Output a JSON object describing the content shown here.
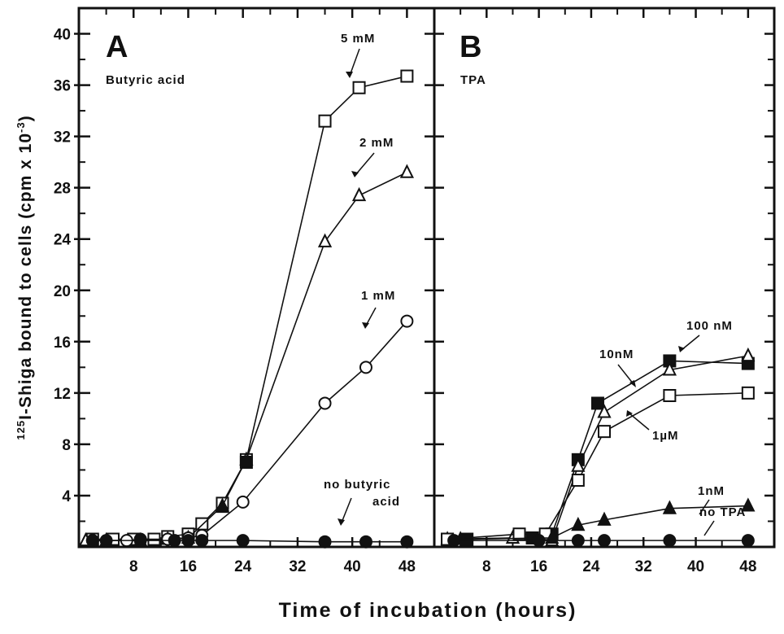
{
  "chart_data": [
    {
      "type": "line",
      "panel_letter": "A",
      "subtitle": "Butyric acid",
      "xlabel": "Time of incubation (hours)",
      "ylabel": "125I-Shiga bound to cells (cpm x10^3)",
      "ylabel_parts": {
        "sup": "125",
        "main": "I-Shiga bound to cells  (cpm x 10",
        "exp": "-3",
        "close": ")"
      },
      "xlim": [
        0,
        52
      ],
      "ylim": [
        0,
        42
      ],
      "x_ticks": [
        8,
        16,
        24,
        32,
        40,
        48
      ],
      "y_ticks": [
        4,
        8,
        12,
        16,
        20,
        24,
        28,
        32,
        36,
        40
      ],
      "grid": false,
      "series": [
        {
          "name": "5 mM",
          "marker": "square-open",
          "x": [
            2,
            5,
            8,
            11,
            13,
            16,
            18,
            21,
            24.5,
            36,
            41,
            48
          ],
          "y": [
            0.6,
            0.6,
            0.6,
            0.6,
            0.8,
            1.0,
            1.8,
            3.4,
            6.8,
            33.2,
            35.8,
            36.7
          ]
        },
        {
          "name": "2 mM",
          "marker": "triangle-open",
          "x": [
            1,
            4,
            9,
            13,
            16,
            21,
            24.5,
            36,
            41,
            48
          ],
          "y": [
            0.5,
            0.5,
            0.5,
            0.6,
            0.7,
            3.2,
            6.8,
            23.8,
            27.4,
            29.2
          ]
        },
        {
          "name": "1 mM",
          "marker": "circle-open",
          "x": [
            2,
            7,
            9,
            13,
            16,
            18,
            24,
            36,
            42,
            48
          ],
          "y": [
            0.5,
            0.5,
            0.6,
            0.6,
            0.7,
            0.9,
            3.5,
            11.2,
            14.0,
            17.6
          ]
        },
        {
          "name": "no butyric acid",
          "marker": "circle-filled",
          "x": [
            2,
            4,
            9,
            14,
            16,
            18,
            24,
            36,
            42,
            48
          ],
          "y": [
            0.5,
            0.5,
            0.5,
            0.5,
            0.5,
            0.5,
            0.5,
            0.4,
            0.4,
            0.4
          ]
        },
        {
          "name": "",
          "marker": "square-filled",
          "x": [
            24.5
          ],
          "y": [
            6.6
          ]
        },
        {
          "name": "",
          "marker": "triangle-filled",
          "x": [
            21
          ],
          "y": [
            3.1
          ]
        }
      ],
      "annotations": [
        {
          "text": "5 mM"
        },
        {
          "text": "2 mM"
        },
        {
          "text": "1 mM"
        },
        {
          "text": "no  butyric"
        },
        {
          "text": "acid"
        }
      ]
    },
    {
      "type": "line",
      "panel_letter": "B",
      "subtitle": "TPA",
      "xlim": [
        0,
        52
      ],
      "ylim": [
        0,
        42
      ],
      "x_ticks": [
        8,
        16,
        24,
        32,
        40,
        48
      ],
      "y_ticks": [
        4,
        8,
        12,
        16,
        20,
        24,
        28,
        32,
        36,
        40
      ],
      "grid": false,
      "series": [
        {
          "name": "100 nM",
          "marker": "square-filled",
          "x": [
            2,
            5,
            15,
            18,
            22,
            25,
            36,
            48
          ],
          "y": [
            0.6,
            0.6,
            0.7,
            1.0,
            6.8,
            11.2,
            14.5,
            14.3
          ]
        },
        {
          "name": "10 nM",
          "marker": "triangle-open",
          "x": [
            2,
            12,
            18,
            22,
            26,
            36,
            48
          ],
          "y": [
            0.6,
            0.7,
            0.5,
            6.3,
            10.5,
            13.8,
            14.9
          ]
        },
        {
          "name": "1 µM",
          "marker": "square-open",
          "x": [
            2,
            13,
            17,
            22,
            26,
            36,
            48
          ],
          "y": [
            0.6,
            1.0,
            1.0,
            5.2,
            9.0,
            11.8,
            12.0
          ]
        },
        {
          "name": "1 nM",
          "marker": "triangle-filled",
          "x": [
            4,
            18,
            22,
            26,
            36,
            48
          ],
          "y": [
            0.6,
            0.7,
            1.7,
            2.1,
            3.0,
            3.2
          ]
        },
        {
          "name": "no TPA",
          "marker": "circle-filled",
          "x": [
            3,
            16,
            22,
            26,
            36,
            48
          ],
          "y": [
            0.5,
            0.5,
            0.5,
            0.5,
            0.5,
            0.5
          ]
        }
      ],
      "annotations": [
        {
          "text": "100 nM"
        },
        {
          "text": "10nM"
        },
        {
          "text": "1µM"
        },
        {
          "text": "1nM"
        },
        {
          "text": "no TPA"
        }
      ]
    }
  ]
}
